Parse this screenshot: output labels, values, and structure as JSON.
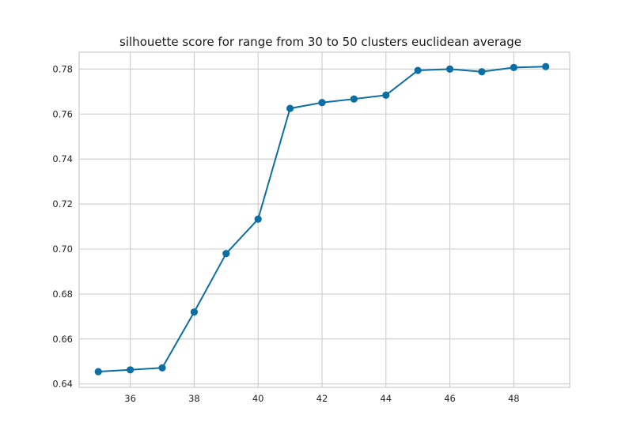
{
  "chart_data": {
    "type": "line",
    "title": "silhouette score for range from 30 to 50 clusters euclidean average",
    "xlabel": "",
    "ylabel": "",
    "x": [
      35,
      36,
      37,
      38,
      39,
      40,
      41,
      42,
      43,
      44,
      45,
      46,
      47,
      48,
      49
    ],
    "series": [
      {
        "values": [
          0.6455,
          0.6463,
          0.6472,
          0.672,
          0.698,
          0.7133,
          0.7625,
          0.7651,
          0.7667,
          0.7684,
          0.7794,
          0.78,
          0.7788,
          0.7807,
          0.7811
        ],
        "color": "#0b6ea4"
      }
    ],
    "xlim": [
      34.4,
      49.75
    ],
    "ylim": [
      0.6385,
      0.7875
    ],
    "xticks": [
      36,
      38,
      40,
      42,
      44,
      46,
      48
    ],
    "xtick_labels": [
      "36",
      "38",
      "40",
      "42",
      "44",
      "46",
      "48"
    ],
    "yticks": [
      0.64,
      0.66,
      0.68,
      0.7,
      0.72,
      0.74,
      0.76,
      0.78
    ],
    "ytick_labels": [
      "0.64",
      "0.66",
      "0.68",
      "0.70",
      "0.72",
      "0.74",
      "0.76",
      "0.78"
    ],
    "grid": true,
    "legend": "none"
  }
}
